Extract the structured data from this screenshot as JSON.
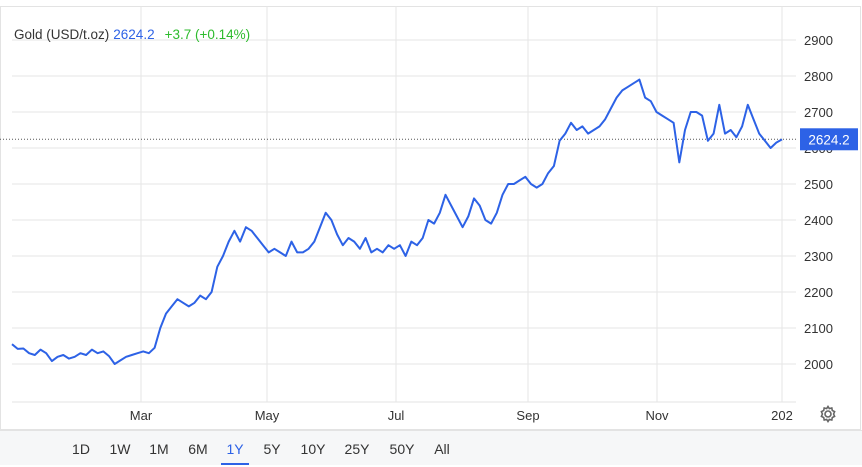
{
  "header": {
    "instrument": "Gold (USD/t.oz)",
    "price": "2624.2",
    "change": "+3.7 (+0.14%)"
  },
  "colors": {
    "line": "#2d62e6",
    "change_positive": "#2dbb2d",
    "price_tag_bg": "#2d62e6",
    "grid": "#e6e6e6"
  },
  "icons": {
    "settings": "gear-icon"
  },
  "range_buttons": [
    {
      "label": "1D"
    },
    {
      "label": "1W"
    },
    {
      "label": "1M"
    },
    {
      "label": "6M"
    },
    {
      "label": "1Y",
      "active": true
    },
    {
      "label": "5Y"
    },
    {
      "label": "10Y"
    },
    {
      "label": "25Y"
    },
    {
      "label": "50Y"
    },
    {
      "label": "All"
    }
  ],
  "chart_data": {
    "type": "line",
    "ylim": [
      1900,
      2950
    ],
    "y_ticks": [
      2000,
      2100,
      2200,
      2300,
      2400,
      2500,
      2600,
      2700,
      2800,
      2900
    ],
    "x_ticks": [
      "Mar",
      "May",
      "Jul",
      "Sep",
      "Nov",
      "202"
    ],
    "last_value": 2624.2,
    "last_value_label": "2624.2",
    "grid": true,
    "series": [
      {
        "values": [
          2055,
          2042,
          2043,
          2030,
          2025,
          2040,
          2030,
          2008,
          2020,
          2025,
          2015,
          2020,
          2030,
          2025,
          2040,
          2030,
          2035,
          2022,
          2000,
          2010,
          2020,
          2025,
          2030,
          2035,
          2030,
          2045,
          2100,
          2140,
          2160,
          2180,
          2170,
          2160,
          2170,
          2190,
          2180,
          2200,
          2270,
          2300,
          2340,
          2370,
          2340,
          2380,
          2370,
          2350,
          2330,
          2310,
          2320,
          2310,
          2300,
          2340,
          2310,
          2310,
          2320,
          2340,
          2380,
          2420,
          2400,
          2360,
          2330,
          2350,
          2340,
          2320,
          2350,
          2310,
          2320,
          2310,
          2330,
          2320,
          2330,
          2300,
          2340,
          2330,
          2350,
          2400,
          2390,
          2420,
          2470,
          2440,
          2410,
          2380,
          2410,
          2460,
          2440,
          2400,
          2390,
          2420,
          2470,
          2500,
          2500,
          2510,
          2520,
          2500,
          2490,
          2500,
          2530,
          2550,
          2620,
          2640,
          2670,
          2650,
          2660,
          2640,
          2650,
          2660,
          2680,
          2710,
          2740,
          2760,
          2770,
          2780,
          2790,
          2740,
          2730,
          2700,
          2690,
          2680,
          2670,
          2560,
          2650,
          2700,
          2700,
          2690,
          2620,
          2640,
          2720,
          2640,
          2650,
          2630,
          2660,
          2720,
          2680,
          2640,
          2620,
          2600,
          2615,
          2624
        ]
      }
    ]
  }
}
